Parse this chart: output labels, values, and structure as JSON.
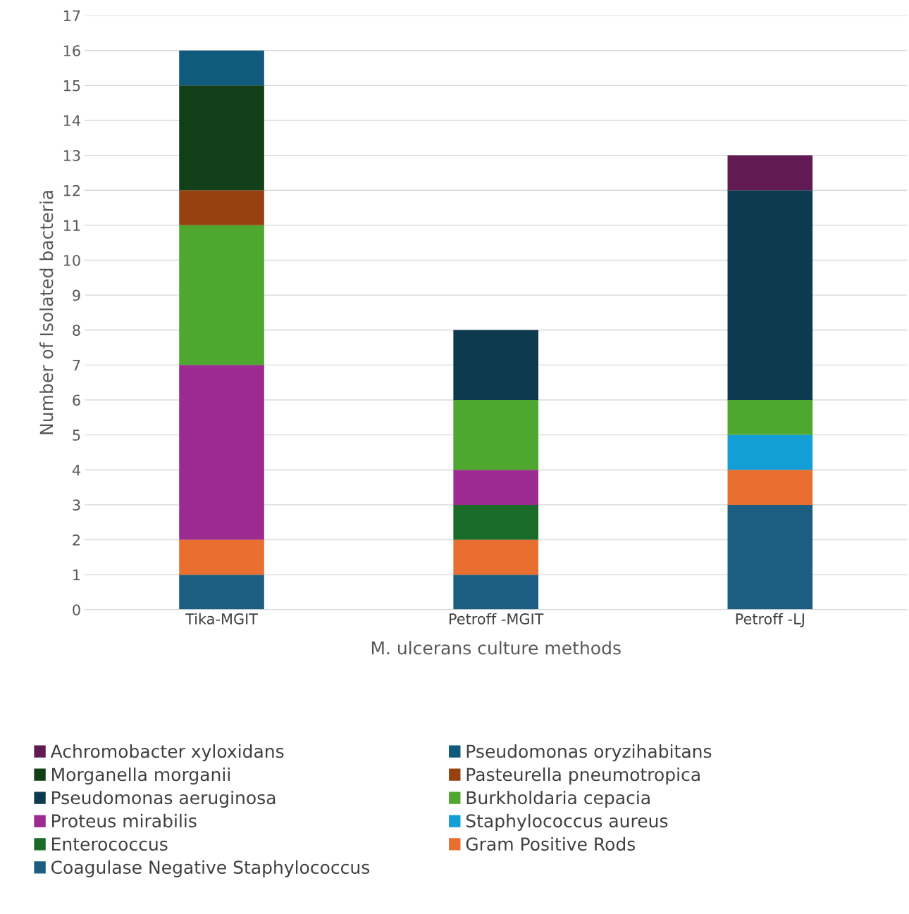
{
  "chart_data": {
    "type": "bar",
    "stacked": true,
    "xlabel": "M. ulcerans culture methods",
    "ylabel": "Number of Isolated bacteria",
    "categories": [
      "Tika-MGIT",
      "Petroff -MGIT",
      "Petroff -LJ"
    ],
    "series": [
      {
        "name": "Coagulase Negative Staphylococcus",
        "color": "#1b5e82",
        "values": [
          1,
          1,
          3
        ]
      },
      {
        "name": "Gram Positive Rods",
        "color": "#e86f30",
        "values": [
          1,
          1,
          1
        ]
      },
      {
        "name": "Enterococcus",
        "color": "#1a6b28",
        "values": [
          null,
          1,
          null
        ]
      },
      {
        "name": "Staphylococcus aureus",
        "color": "#139fd6",
        "values": [
          null,
          null,
          1
        ]
      },
      {
        "name": "Proteus mirabilis",
        "color": "#9c2a90",
        "values": [
          5,
          1,
          null
        ]
      },
      {
        "name": "Burkholdaria cepacia",
        "color": "#4ea72e",
        "values": [
          4,
          2,
          1
        ]
      },
      {
        "name": "Pseudomonas aeruginosa",
        "color": "#0e3a50",
        "values": [
          null,
          2,
          6
        ]
      },
      {
        "name": "Pasteurella pneumotropica",
        "color": "#974010",
        "values": [
          1,
          null,
          null
        ]
      },
      {
        "name": "Morganella morganii",
        "color": "#113f17",
        "values": [
          3,
          null,
          null
        ]
      },
      {
        "name": "Pseudomonas oryzihabitans",
        "color": "#0f5a7d",
        "values": [
          1,
          null,
          null
        ]
      },
      {
        "name": "Achromobacter xyloxidans",
        "color": "#611a52",
        "values": [
          null,
          null,
          1
        ]
      }
    ],
    "ylim": [
      0,
      17
    ],
    "yticks": [
      0,
      1,
      2,
      3,
      4,
      5,
      6,
      7,
      8,
      9,
      10,
      11,
      12,
      13,
      14,
      15,
      16,
      17
    ],
    "grid": "y",
    "legend": "bottom"
  }
}
